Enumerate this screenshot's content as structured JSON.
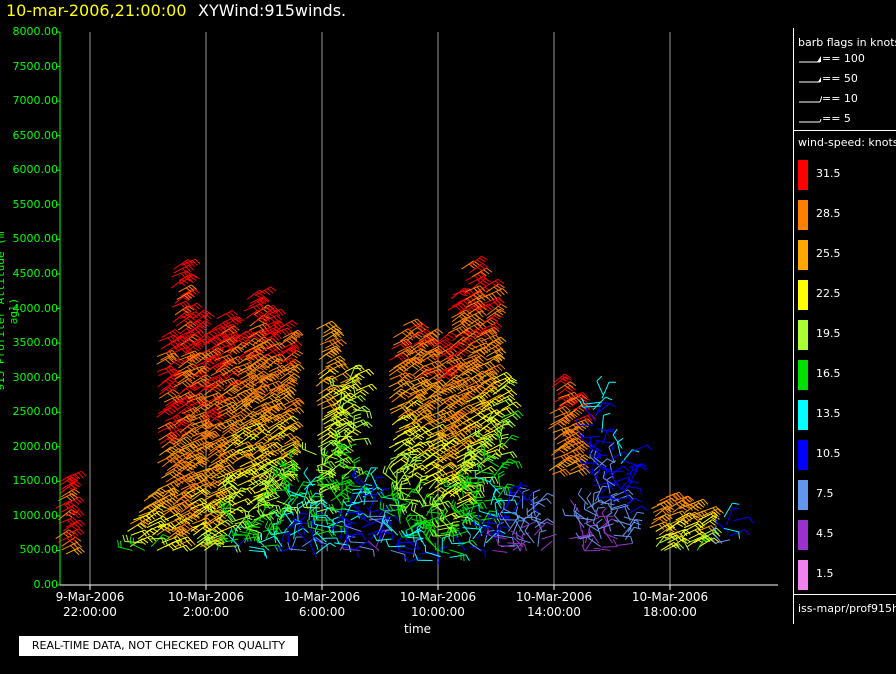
{
  "title": {
    "datetime": "10-mar-2006,21:00:00",
    "name": "XYWind:915winds."
  },
  "chart_data": {
    "type": "scatter",
    "mark": "wind barbs",
    "ylabel": "915 Profiler Altitude (m agl)",
    "xlabel": "time",
    "ylim": [
      0,
      8000
    ],
    "yticks": [
      "8000.00",
      "7500.00",
      "7000.00",
      "6500.00",
      "6000.00",
      "5500.00",
      "5000.00",
      "4500.00",
      "4000.00",
      "3500.00",
      "3000.00",
      "2500.00",
      "2000.00",
      "1500.00",
      "1000.00",
      "500.00",
      "0.00"
    ],
    "xticks": [
      {
        "date": "9-Mar-2006",
        "time": "22:00:00"
      },
      {
        "date": "10-Mar-2006",
        "time": "2:00:00"
      },
      {
        "date": "10-Mar-2006",
        "time": "6:00:00"
      },
      {
        "date": "10-Mar-2006",
        "time": "10:00:00"
      },
      {
        "date": "10-Mar-2006",
        "time": "14:00:00"
      },
      {
        "date": "10-Mar-2006",
        "time": "18:00:00"
      }
    ],
    "grid": "vertical",
    "profiles": [
      {
        "time": "21:00",
        "top": 1600,
        "bottom": 450,
        "hi": 31,
        "lo": 28
      },
      {
        "time": "23:30",
        "top": 1100,
        "bottom": 500,
        "hi": 27,
        "lo": 18
      },
      {
        "time": "00:00",
        "top": 1300,
        "bottom": 500,
        "hi": 26,
        "lo": 16
      },
      {
        "time": "00:30",
        "top": 3600,
        "bottom": 500,
        "hi": 32,
        "lo": 22
      },
      {
        "time": "01:00",
        "top": 4650,
        "bottom": 500,
        "hi": 32,
        "lo": 24
      },
      {
        "time": "01:30",
        "top": 3900,
        "bottom": 500,
        "hi": 32,
        "lo": 20
      },
      {
        "time": "02:00",
        "top": 3700,
        "bottom": 500,
        "hi": 32,
        "lo": 22
      },
      {
        "time": "02:30",
        "top": 3900,
        "bottom": 500,
        "hi": 32,
        "lo": 16
      },
      {
        "time": "03:00",
        "top": 3600,
        "bottom": 500,
        "hi": 30,
        "lo": 13
      },
      {
        "time": "03:30",
        "top": 4200,
        "bottom": 500,
        "hi": 32,
        "lo": 14
      },
      {
        "time": "04:00",
        "top": 4000,
        "bottom": 500,
        "hi": 32,
        "lo": 12
      },
      {
        "time": "04:30",
        "top": 3700,
        "bottom": 500,
        "hi": 31,
        "lo": 12
      },
      {
        "time": "05:00",
        "top": 1800,
        "bottom": 500,
        "hi": 18,
        "lo": 9
      },
      {
        "time": "05:30",
        "top": 1500,
        "bottom": 500,
        "hi": 14,
        "lo": 8
      },
      {
        "time": "06:00",
        "top": 3700,
        "bottom": 400,
        "hi": 28,
        "lo": 10
      },
      {
        "time": "06:30",
        "top": 3000,
        "bottom": 500,
        "hi": 24,
        "lo": 9
      },
      {
        "time": "07:00",
        "top": 3100,
        "bottom": 500,
        "hi": 22,
        "lo": 8
      },
      {
        "time": "07:30",
        "top": 1500,
        "bottom": 500,
        "hi": 12,
        "lo": 6
      },
      {
        "time": "08:00",
        "top": 1400,
        "bottom": 500,
        "hi": 11,
        "lo": 6
      },
      {
        "time": "08:30",
        "top": 3600,
        "bottom": 500,
        "hi": 30,
        "lo": 8
      },
      {
        "time": "09:00",
        "top": 3800,
        "bottom": 400,
        "hi": 30,
        "lo": 10
      },
      {
        "time": "09:30",
        "top": 3600,
        "bottom": 400,
        "hi": 31,
        "lo": 10
      },
      {
        "time": "10:00",
        "top": 3500,
        "bottom": 300,
        "hi": 31,
        "lo": 12
      },
      {
        "time": "10:30",
        "top": 4200,
        "bottom": 400,
        "hi": 32,
        "lo": 14
      },
      {
        "time": "11:00",
        "top": 4650,
        "bottom": 500,
        "hi": 32,
        "lo": 10
      },
      {
        "time": "11:30",
        "top": 4300,
        "bottom": 500,
        "hi": 31,
        "lo": 8
      },
      {
        "time": "12:00",
        "top": 3000,
        "bottom": 500,
        "hi": 22,
        "lo": 6
      },
      {
        "time": "12:30",
        "top": 1300,
        "bottom": 500,
        "hi": 10,
        "lo": 5
      },
      {
        "time": "13:00",
        "top": 1300,
        "bottom": 500,
        "hi": 9,
        "lo": 4
      },
      {
        "time": "13:30",
        "top": 1200,
        "bottom": 500,
        "hi": 8,
        "lo": 4
      },
      {
        "time": "14:00",
        "top": 2950,
        "bottom": 1600,
        "hi": 30,
        "lo": 27
      },
      {
        "time": "14:30",
        "top": 2700,
        "bottom": 1600,
        "hi": 30,
        "lo": 26
      },
      {
        "time": "15:00",
        "top": 1200,
        "bottom": 500,
        "hi": 6,
        "lo": 3
      },
      {
        "time": "15:30",
        "top": 2800,
        "bottom": 500,
        "hi": 12,
        "lo": 4
      },
      {
        "time": "16:00",
        "top": 1900,
        "bottom": 500,
        "hi": 10,
        "lo": 4
      },
      {
        "time": "16:30",
        "top": 2000,
        "bottom": 600,
        "hi": 12,
        "lo": 6
      },
      {
        "time": "17:30",
        "top": 1250,
        "bottom": 500,
        "hi": 28,
        "lo": 20
      },
      {
        "time": "18:00",
        "top": 1300,
        "bottom": 500,
        "hi": 28,
        "lo": 20
      },
      {
        "time": "18:30",
        "top": 1200,
        "bottom": 500,
        "hi": 27,
        "lo": 19
      },
      {
        "time": "19:00",
        "top": 1100,
        "bottom": 500,
        "hi": 26,
        "lo": 18
      },
      {
        "time": "20:00",
        "top": 1000,
        "bottom": 600,
        "hi": 12,
        "lo": 8
      }
    ]
  },
  "legend": {
    "barb_title": "barb flags in knots",
    "barbs": [
      "== 100",
      "== 50",
      "== 10",
      "== 5"
    ],
    "speed_title": "wind-speed: knots",
    "scale": [
      {
        "label": "31.5",
        "color": "#ff0000"
      },
      {
        "label": "28.5",
        "color": "#ff7f00"
      },
      {
        "label": "25.5",
        "color": "#ffa500"
      },
      {
        "label": "22.5",
        "color": "#ffff00"
      },
      {
        "label": "19.5",
        "color": "#aaff33"
      },
      {
        "label": "16.5",
        "color": "#00e000"
      },
      {
        "label": "13.5",
        "color": "#00ffff"
      },
      {
        "label": "10.5",
        "color": "#0000ff"
      },
      {
        "label": "7.5",
        "color": "#6495ed"
      },
      {
        "label": "4.5",
        "color": "#9932cc"
      },
      {
        "label": "1.5",
        "color": "#ee82ee"
      }
    ],
    "source": "iss-mapr/prof915h"
  },
  "qc_notice": "REAL-TIME DATA, NOT CHECKED FOR QUALITY"
}
